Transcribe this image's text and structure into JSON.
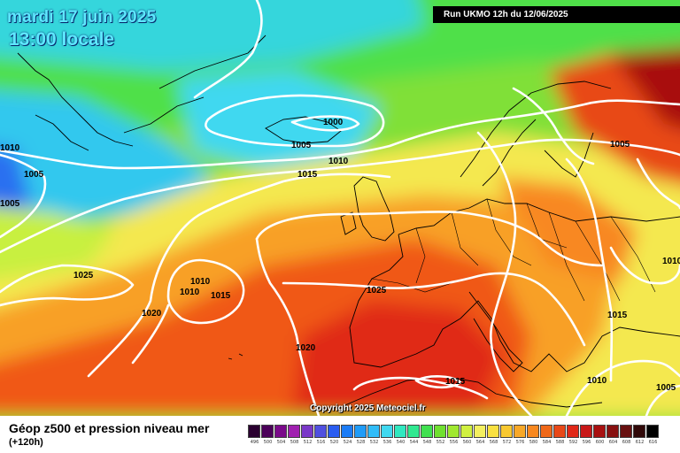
{
  "header": {
    "date": "mardi 17 juin 2025",
    "local_time": "13:00 locale",
    "run_info": "Run UKMO 12h du 12/06/2025"
  },
  "footer": {
    "field_title": "Géop z500 et pression niveau mer",
    "lead_time": "(+120h)",
    "copyright": "Copyright 2025 Meteociel.fr"
  },
  "colors": {
    "land_outline": "#000000",
    "isobar": "#ffffff",
    "title_text": "#5ee8ff"
  },
  "legend": [
    {
      "value": "496",
      "color": "#2a0030"
    },
    {
      "value": "500",
      "color": "#4b0059"
    },
    {
      "value": "504",
      "color": "#7a0a8a"
    },
    {
      "value": "508",
      "color": "#a020b0"
    },
    {
      "value": "512",
      "color": "#7a38c8"
    },
    {
      "value": "516",
      "color": "#5050e0"
    },
    {
      "value": "520",
      "color": "#2a5cf0"
    },
    {
      "value": "524",
      "color": "#1c7cf6"
    },
    {
      "value": "528",
      "color": "#209cf8"
    },
    {
      "value": "532",
      "color": "#30bcf8"
    },
    {
      "value": "536",
      "color": "#40d8f0"
    },
    {
      "value": "540",
      "color": "#30e8c0"
    },
    {
      "value": "544",
      "color": "#30e890"
    },
    {
      "value": "548",
      "color": "#40e050"
    },
    {
      "value": "552",
      "color": "#70e030"
    },
    {
      "value": "556",
      "color": "#a0e830"
    },
    {
      "value": "560",
      "color": "#d0f040"
    },
    {
      "value": "564",
      "color": "#f4f060"
    },
    {
      "value": "568",
      "color": "#f8e040"
    },
    {
      "value": "572",
      "color": "#f8c830"
    },
    {
      "value": "576",
      "color": "#f8a828"
    },
    {
      "value": "580",
      "color": "#f88820"
    },
    {
      "value": "584",
      "color": "#f06818"
    },
    {
      "value": "588",
      "color": "#e84818"
    },
    {
      "value": "592",
      "color": "#e02818"
    },
    {
      "value": "596",
      "color": "#c81818"
    },
    {
      "value": "600",
      "color": "#a81010"
    },
    {
      "value": "604",
      "color": "#881010"
    },
    {
      "value": "608",
      "color": "#681010"
    },
    {
      "value": "612",
      "color": "#300808"
    },
    {
      "value": "616",
      "color": "#000000"
    }
  ],
  "isobar_labels": [
    "1010",
    "1005",
    "1005",
    "1025",
    "1020",
    "1010",
    "1010",
    "1015",
    "1000",
    "1005",
    "1010",
    "1015",
    "1025",
    "1020",
    "1015",
    "1005",
    "1010",
    "1015",
    "1010",
    "1005"
  ]
}
